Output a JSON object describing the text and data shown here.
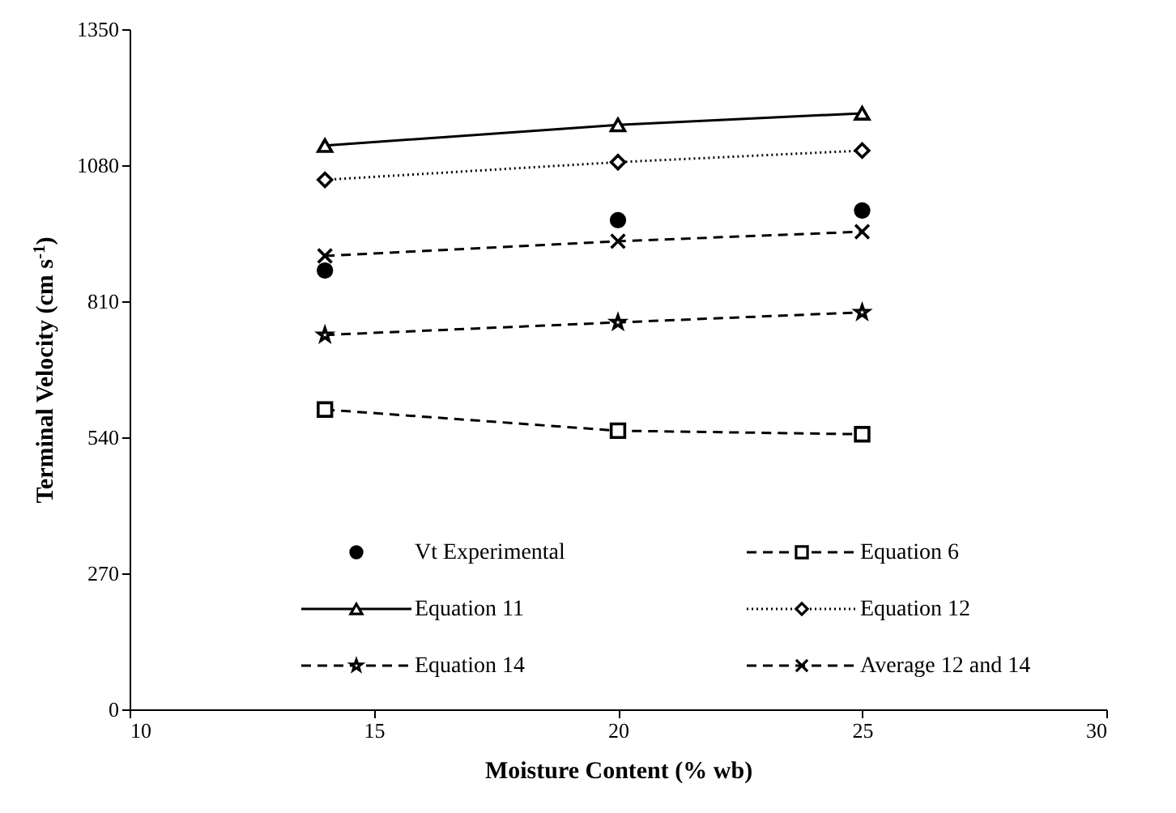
{
  "chart_data": {
    "type": "line",
    "xlabel": "Moisture Content (% wb)",
    "ylabel": "Terminal Velocity (cm s$^{-1}$)",
    "x": [
      14,
      20,
      25
    ],
    "xlim": [
      10,
      30
    ],
    "xticks": [
      10,
      15,
      20,
      25,
      30
    ],
    "ylim": [
      0,
      1350
    ],
    "yticks": [
      0,
      270,
      540,
      810,
      1080,
      1350
    ],
    "grid": false,
    "legend": "bottom",
    "series": [
      {
        "name": "Vt Experimental",
        "type": "scatter",
        "marker": "circle",
        "color": "#000000",
        "values": [
          871,
          971,
          990
        ]
      },
      {
        "name": "Equation 6",
        "marker": "square",
        "line_style": "dashed",
        "color": "#000000",
        "values": [
          595,
          553,
          546
        ]
      },
      {
        "name": "Equation 11",
        "marker": "triangle",
        "line_style": "solid",
        "color": "#000000",
        "values": [
          1119,
          1160,
          1183
        ]
      },
      {
        "name": "Equation 12",
        "marker": "diamond",
        "line_style": "dotted",
        "color": "#000000",
        "values": [
          1051,
          1086,
          1109
        ]
      },
      {
        "name": "Equation 14",
        "marker": "star",
        "line_style": "dashed",
        "color": "#000000",
        "values": [
          743,
          768,
          788
        ]
      },
      {
        "name": "Average 12 and 14",
        "marker": "cross",
        "line_style": "dashed",
        "color": "#000000",
        "values": [
          900,
          929,
          948
        ]
      }
    ]
  }
}
